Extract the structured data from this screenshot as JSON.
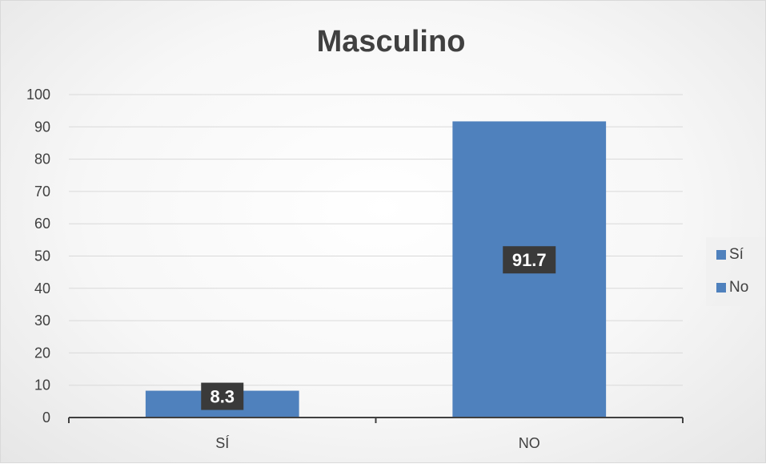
{
  "chart_data": {
    "type": "bar",
    "title": "Masculino",
    "categories": [
      "SÍ",
      "NO"
    ],
    "values": [
      8.3,
      91.7
    ],
    "data_labels": [
      "8.3",
      "91.7"
    ],
    "ylim": [
      0,
      100
    ],
    "yticks": [
      "0",
      "10",
      "20",
      "30",
      "40",
      "50",
      "60",
      "70",
      "80",
      "90",
      "100"
    ],
    "grid": true,
    "bar_color": "#4f81bd",
    "legend": {
      "position": "right",
      "entries": [
        {
          "label": "Sí",
          "color": "#4f81bd"
        },
        {
          "label": "No",
          "color": "#4f81bd"
        }
      ]
    }
  }
}
